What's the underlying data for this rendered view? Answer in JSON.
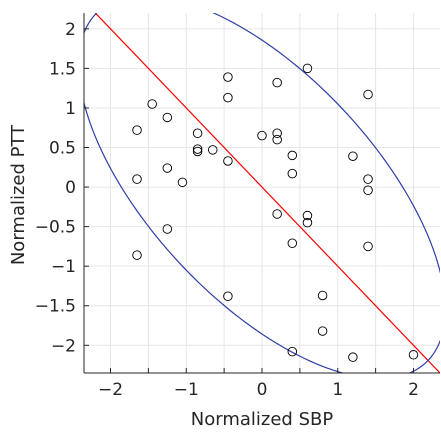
{
  "chart_data": {
    "type": "scatter",
    "xlabel": "Normalized SBP",
    "ylabel": "Normalized PTT",
    "xlim": [
      -2.35,
      2.35
    ],
    "ylim": [
      -2.35,
      2.2
    ],
    "xticks": [
      -2,
      -1.5,
      -1,
      -0.5,
      0,
      0.5,
      1,
      1.5,
      2
    ],
    "xtick_labels": [
      "−2",
      "",
      "−1",
      "",
      "0",
      "",
      "1",
      "",
      "2"
    ],
    "yticks": [
      -2,
      -1.5,
      -1,
      -0.5,
      0,
      0.5,
      1,
      1.5,
      2
    ],
    "ytick_labels": [
      "−2",
      "−1.5",
      "−1",
      "−0.5",
      "0",
      "0.5",
      "1",
      "1.5",
      "2"
    ],
    "grid": true,
    "points": [
      {
        "x": -1.65,
        "y": 0.72
      },
      {
        "x": -1.65,
        "y": 0.1
      },
      {
        "x": -1.65,
        "y": -0.86
      },
      {
        "x": -1.45,
        "y": 1.05
      },
      {
        "x": -1.25,
        "y": 0.88
      },
      {
        "x": -1.25,
        "y": 0.24
      },
      {
        "x": -1.25,
        "y": -0.53
      },
      {
        "x": -1.05,
        "y": 0.06
      },
      {
        "x": -0.85,
        "y": 0.68
      },
      {
        "x": -0.85,
        "y": 0.48
      },
      {
        "x": -0.85,
        "y": 0.45
      },
      {
        "x": -0.65,
        "y": 0.47
      },
      {
        "x": -0.45,
        "y": 1.39
      },
      {
        "x": -0.45,
        "y": 1.13
      },
      {
        "x": -0.45,
        "y": 0.33
      },
      {
        "x": -0.45,
        "y": -1.38
      },
      {
        "x": 0.0,
        "y": 0.65
      },
      {
        "x": 0.2,
        "y": 1.32
      },
      {
        "x": 0.2,
        "y": 0.68
      },
      {
        "x": 0.2,
        "y": 0.6
      },
      {
        "x": 0.2,
        "y": -0.34
      },
      {
        "x": 0.4,
        "y": 0.4
      },
      {
        "x": 0.4,
        "y": 0.17
      },
      {
        "x": 0.4,
        "y": -0.71
      },
      {
        "x": 0.4,
        "y": -2.08
      },
      {
        "x": 0.6,
        "y": 1.5
      },
      {
        "x": 0.6,
        "y": -0.36
      },
      {
        "x": 0.6,
        "y": -0.45
      },
      {
        "x": 0.8,
        "y": -1.37
      },
      {
        "x": 0.8,
        "y": -1.82
      },
      {
        "x": 1.2,
        "y": 0.39
      },
      {
        "x": 1.2,
        "y": -2.15
      },
      {
        "x": 1.4,
        "y": 1.17
      },
      {
        "x": 1.4,
        "y": 0.1
      },
      {
        "x": 1.4,
        "y": -0.04
      },
      {
        "x": 1.4,
        "y": -0.75
      },
      {
        "x": 2.0,
        "y": -2.12
      }
    ],
    "reference_line": {
      "slope": -1,
      "intercept": 0,
      "color": "#ff0000"
    },
    "ellipse": {
      "center": [
        0,
        0
      ],
      "semi_major": 3.1,
      "semi_minor": 1.45,
      "angle_deg": -45,
      "color": "#2f3ea8"
    },
    "colors": {
      "marker": "#000000",
      "axis": "#262626",
      "grid": "#e6e6e6"
    }
  }
}
